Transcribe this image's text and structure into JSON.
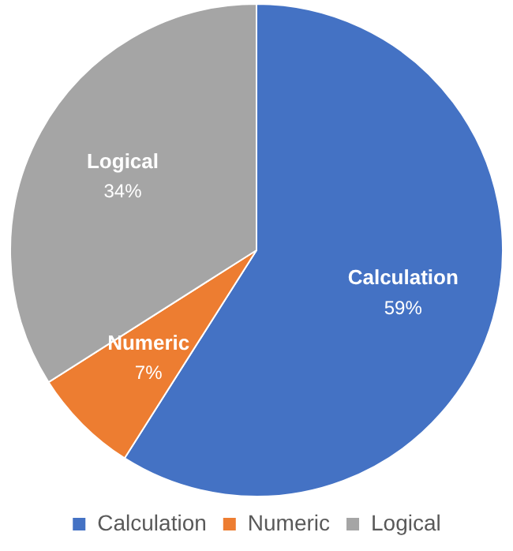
{
  "chart_data": {
    "type": "pie",
    "categories": [
      "Calculation",
      "Numeric",
      "Logical"
    ],
    "values": [
      59,
      7,
      34
    ],
    "colors": [
      "#4472c4",
      "#ed7d31",
      "#a5a5a5"
    ],
    "value_labels": [
      "59%",
      "7%",
      "34%"
    ],
    "legend": "bottom"
  }
}
